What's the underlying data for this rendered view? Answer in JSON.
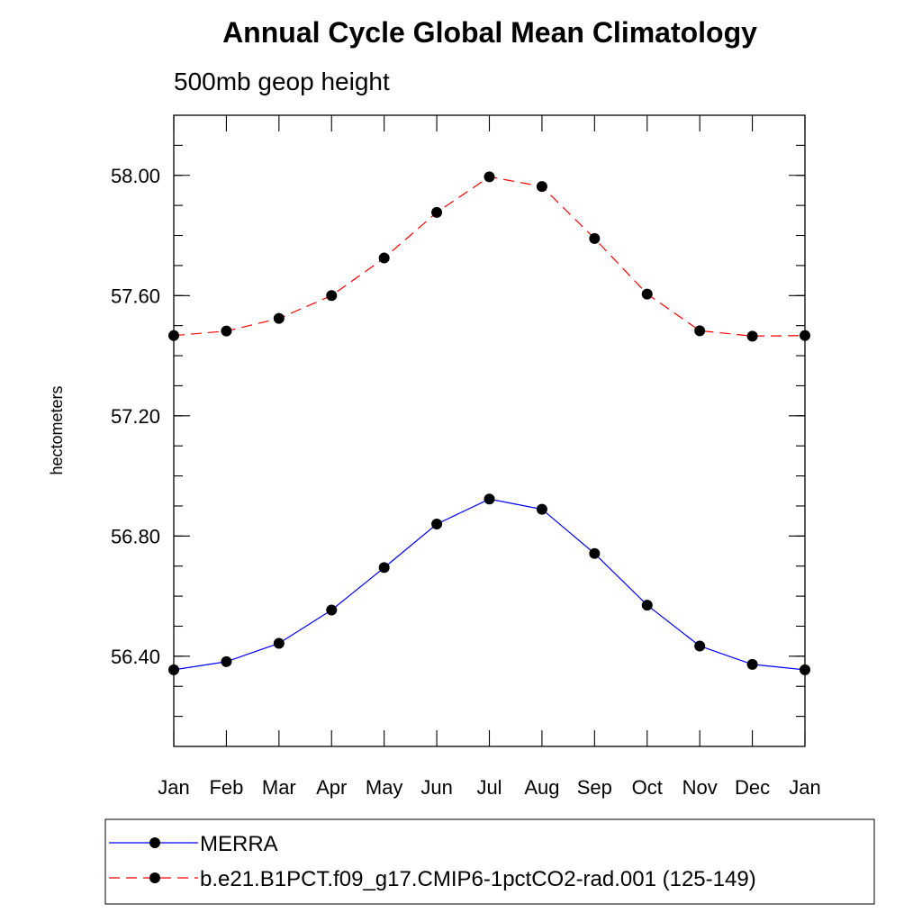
{
  "chart_data": {
    "type": "line",
    "title": "Annual Cycle Global Mean Climatology",
    "subtitle": "500mb geop height",
    "xlabel": "",
    "ylabel": "hectometers",
    "categories": [
      "Jan",
      "Feb",
      "Mar",
      "Apr",
      "May",
      "Jun",
      "Jul",
      "Aug",
      "Sep",
      "Oct",
      "Nov",
      "Dec",
      "Jan"
    ],
    "ylim": [
      56.1,
      58.2
    ],
    "yticks": [
      56.4,
      56.8,
      57.2,
      57.6,
      58.0
    ],
    "ytick_labels": [
      "56.40",
      "56.80",
      "57.20",
      "57.60",
      "58.00"
    ],
    "yminor_step": 0.1,
    "grid": false,
    "legend_position": "bottom",
    "series": [
      {
        "name": "MERRA",
        "color": "#0000ff",
        "line_style": "solid",
        "marker": "filled-circle",
        "values": [
          56.355,
          56.382,
          56.443,
          56.554,
          56.695,
          56.84,
          56.923,
          56.889,
          56.742,
          56.57,
          56.434,
          56.373,
          56.355
        ]
      },
      {
        "name": "b.e21.B1PCT.f09_g17.CMIP6-1pctCO2-rad.001 (125-149)",
        "color": "#ff0000",
        "line_style": "dashed",
        "marker": "filled-circle",
        "values": [
          57.467,
          57.482,
          57.524,
          57.6,
          57.725,
          57.877,
          57.995,
          57.963,
          57.79,
          57.605,
          57.483,
          57.465,
          57.467
        ]
      }
    ]
  }
}
